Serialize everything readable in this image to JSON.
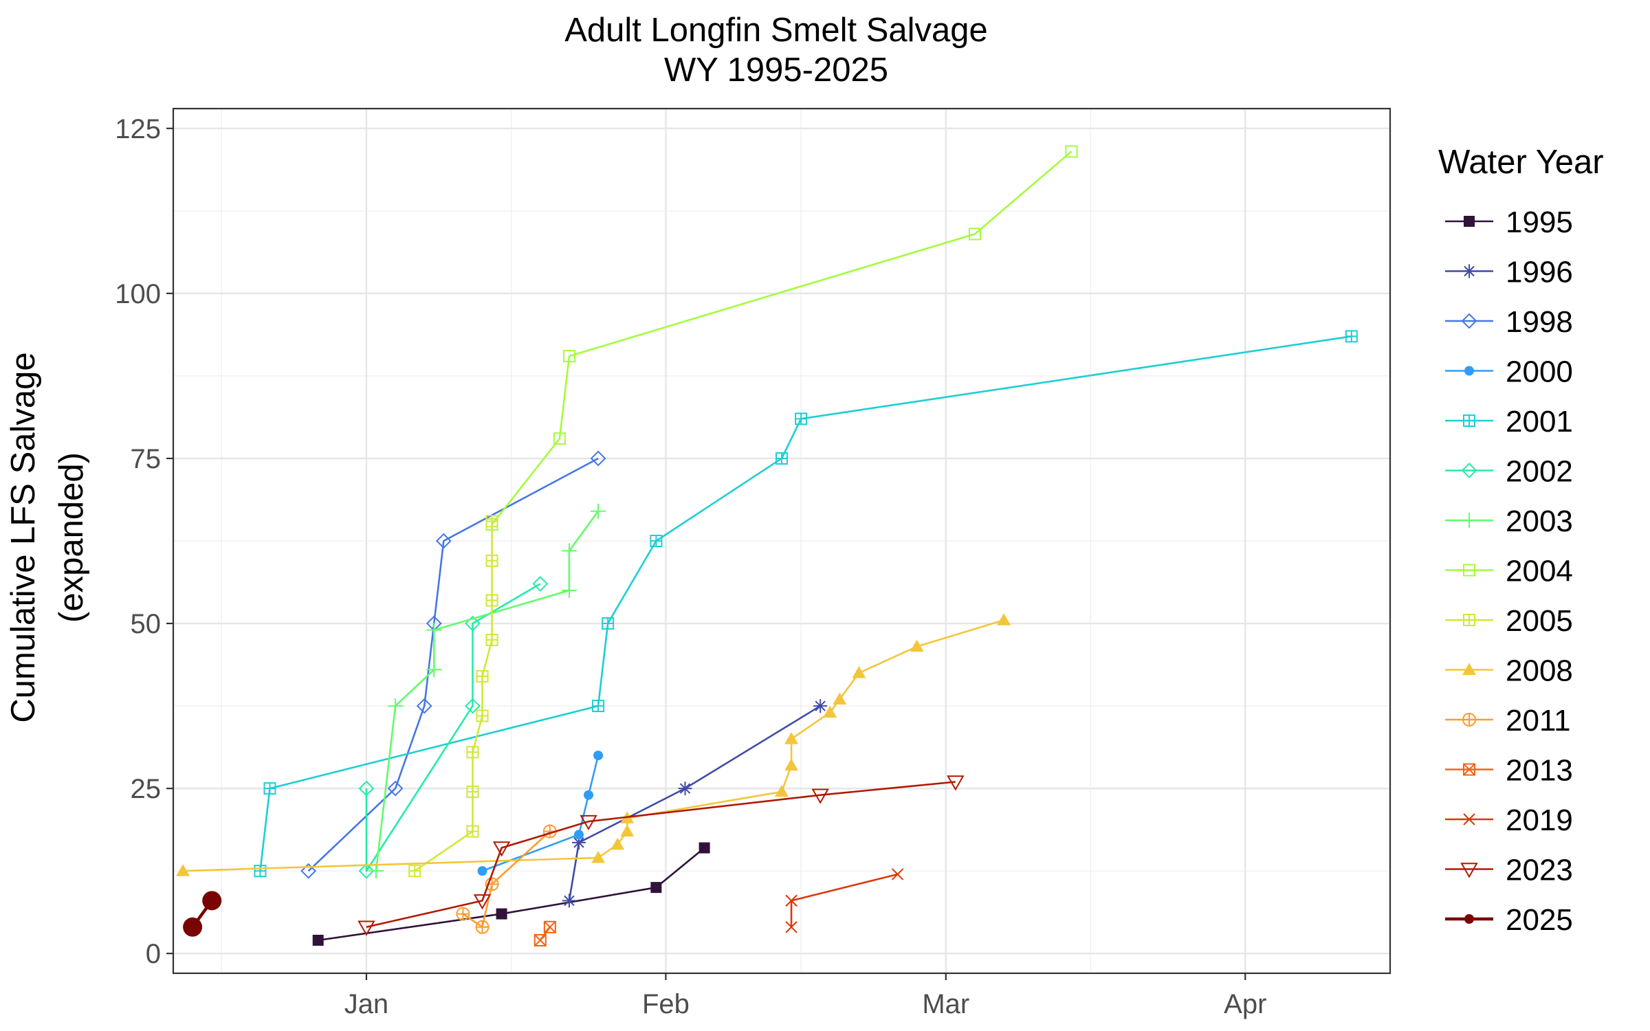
{
  "chart_data": {
    "type": "line",
    "title": "Adult Longfin Smelt Salvage",
    "subtitle": "WY 1995-2025",
    "xlabel": "",
    "ylabel": [
      "Cumulative LFS Salvage",
      "(expanded)"
    ],
    "x_axis": {
      "kind": "date",
      "range": [
        "12-12",
        "04-16"
      ],
      "ticks": [
        {
          "label": "Jan",
          "date": "01-01"
        },
        {
          "label": "Feb",
          "date": "02-01"
        },
        {
          "label": "Mar",
          "date": "03-01"
        },
        {
          "label": "Apr",
          "date": "04-01"
        }
      ],
      "minor_grid": [
        "12-17",
        "01-16",
        "02-15",
        "03-16"
      ]
    },
    "y_axis": {
      "range": [
        -3,
        128
      ],
      "ticks": [
        0,
        25,
        50,
        75,
        100,
        125
      ]
    },
    "grid": true,
    "legend": {
      "title": "Water Year",
      "position": "right"
    },
    "series": [
      {
        "name": "1995",
        "color": "#30123b",
        "marker": "square-filled",
        "points": [
          [
            "12-27",
            2
          ],
          [
            "01-15",
            6
          ],
          [
            "01-31",
            10
          ],
          [
            "02-05",
            16
          ]
        ]
      },
      {
        "name": "1996",
        "color": "#3f4aa8",
        "marker": "asterisk",
        "points": [
          [
            "01-22",
            8
          ],
          [
            "01-23",
            16.8
          ],
          [
            "02-03",
            25
          ],
          [
            "02-17",
            37.5
          ]
        ]
      },
      {
        "name": "1998",
        "color": "#4477e6",
        "marker": "diamond-open",
        "points": [
          [
            "12-26",
            12.5
          ],
          [
            "01-04",
            25
          ],
          [
            "01-07",
            37.5
          ],
          [
            "01-08",
            50
          ],
          [
            "01-09",
            62.5
          ],
          [
            "01-25",
            75
          ]
        ]
      },
      {
        "name": "2000",
        "color": "#2f9df5",
        "marker": "circle-filled",
        "points": [
          [
            "01-13",
            12.5
          ],
          [
            "01-23",
            18
          ],
          [
            "01-24",
            24
          ],
          [
            "01-25",
            30
          ]
        ]
      },
      {
        "name": "2001",
        "color": "#1bcfd4",
        "marker": "square-cross",
        "points": [
          [
            "12-21",
            12.5
          ],
          [
            "12-22",
            25
          ],
          [
            "01-25",
            37.5
          ],
          [
            "01-26",
            50
          ],
          [
            "01-31",
            62.5
          ],
          [
            "02-13",
            75
          ],
          [
            "02-15",
            81
          ],
          [
            "04-12",
            93.5
          ]
        ]
      },
      {
        "name": "2002",
        "color": "#24eca6",
        "marker": "diamond-open",
        "points": [
          [
            "01-01",
            25
          ],
          [
            "01-01",
            12.5
          ],
          [
            "01-12",
            37.5
          ],
          [
            "01-12",
            50
          ],
          [
            "01-19",
            56
          ]
        ]
      },
      {
        "name": "2003",
        "color": "#61fc6c",
        "marker": "plus",
        "points": [
          [
            "01-02",
            12.5
          ],
          [
            "01-04",
            37.5
          ],
          [
            "01-08",
            43
          ],
          [
            "01-08",
            49
          ],
          [
            "01-22",
            55
          ],
          [
            "01-22",
            61
          ],
          [
            "01-25",
            67
          ]
        ]
      },
      {
        "name": "2004",
        "color": "#a4fc3b",
        "marker": "square-open",
        "points": [
          [
            "01-14",
            65
          ],
          [
            "01-21",
            78
          ],
          [
            "01-22",
            90.5
          ],
          [
            "03-04",
            109
          ],
          [
            "03-14",
            121.5
          ]
        ]
      },
      {
        "name": "2005",
        "color": "#d1e834",
        "marker": "square-cross",
        "points": [
          [
            "01-06",
            12.5
          ],
          [
            "01-12",
            18.5
          ],
          [
            "01-12",
            24.5
          ],
          [
            "01-12",
            30.5
          ],
          [
            "01-13",
            36
          ],
          [
            "01-13",
            42
          ],
          [
            "01-14",
            47.5
          ],
          [
            "01-14",
            53.5
          ],
          [
            "01-14",
            59.5
          ],
          [
            "01-14",
            65.5
          ]
        ]
      },
      {
        "name": "2008",
        "color": "#f3c63a",
        "marker": "triangle-filled",
        "points": [
          [
            "12-13",
            12.5
          ],
          [
            "01-25",
            14.5
          ],
          [
            "01-27",
            16.5
          ],
          [
            "01-28",
            18.5
          ],
          [
            "01-28",
            20.5
          ],
          [
            "02-13",
            24.5
          ],
          [
            "02-14",
            28.5
          ],
          [
            "02-14",
            32.5
          ],
          [
            "02-18",
            36.5
          ],
          [
            "02-19",
            38.5
          ],
          [
            "02-21",
            42.5
          ],
          [
            "02-27",
            46.5
          ],
          [
            "03-07",
            50.5
          ]
        ]
      },
      {
        "name": "2011",
        "color": "#fe9b2d",
        "marker": "circle-plus",
        "points": [
          [
            "01-11",
            6
          ],
          [
            "01-13",
            4
          ],
          [
            "01-14",
            10.5
          ],
          [
            "01-20",
            18.5
          ]
        ]
      },
      {
        "name": "2013",
        "color": "#f36315",
        "marker": "square-x",
        "points": [
          [
            "01-19",
            2
          ],
          [
            "01-20",
            4
          ]
        ]
      },
      {
        "name": "2019",
        "color": "#d93806",
        "marker": "x",
        "points": [
          [
            "02-14",
            4
          ],
          [
            "02-14",
            8
          ],
          [
            "02-25",
            12
          ]
        ]
      },
      {
        "name": "2023",
        "color": "#b11901",
        "marker": "triangle-down-open",
        "points": [
          [
            "01-01",
            4
          ],
          [
            "01-13",
            8
          ],
          [
            "01-15",
            16
          ],
          [
            "01-24",
            20
          ],
          [
            "02-17",
            24
          ],
          [
            "03-02",
            26
          ]
        ]
      },
      {
        "name": "2025",
        "color": "#7a0403",
        "marker": "circle-large",
        "points": [
          [
            "12-14",
            4
          ],
          [
            "12-16",
            8
          ]
        ]
      }
    ]
  }
}
